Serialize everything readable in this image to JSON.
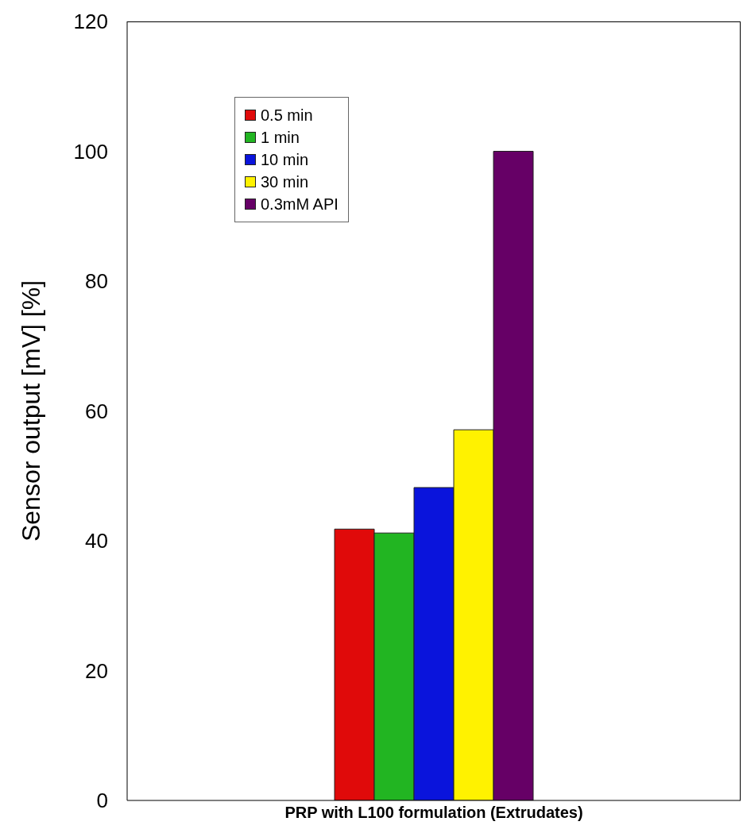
{
  "chart_data": {
    "type": "bar",
    "ylabel": "Sensor output [mV] [%]",
    "categories": [
      "PRP with L100 formulation  (Extrudates)"
    ],
    "series": [
      {
        "name": "0.5 min",
        "color": "#e00a0a",
        "values": [
          41.8
        ]
      },
      {
        "name": "1 min",
        "color": "#22b522",
        "values": [
          41.2
        ]
      },
      {
        "name": "10 min",
        "color": "#0a14dc",
        "values": [
          48.2
        ]
      },
      {
        "name": "30 min",
        "color": "#fff200",
        "values": [
          57.1
        ]
      },
      {
        "name": "0.3mM API",
        "color": "#660066",
        "values": [
          100
        ]
      }
    ],
    "ylim": [
      0,
      120
    ],
    "yticks": [
      0,
      20,
      40,
      60,
      80,
      100,
      120
    ],
    "grid": false,
    "legend": "top left"
  }
}
